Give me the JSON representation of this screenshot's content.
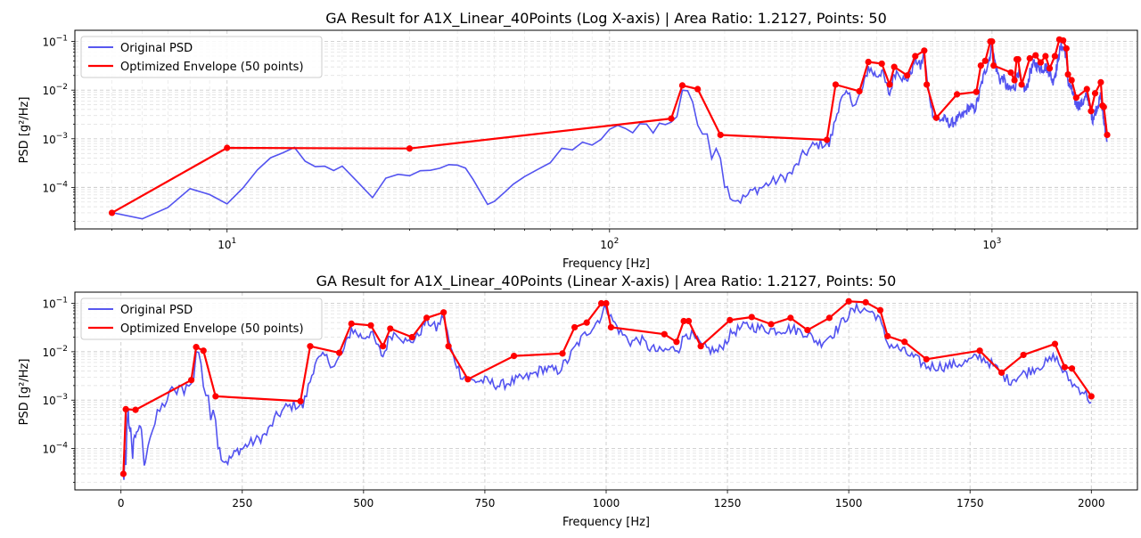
{
  "chart_data": [
    {
      "type": "line",
      "title": "GA Result for A1X_Linear_40Points (Log X-axis) | Area Ratio: 1.2127, Points: 50",
      "xlabel": "Frequency [Hz]",
      "ylabel": "PSD [g²/Hz]",
      "xscale": "log",
      "yscale": "log",
      "xlim": [
        4,
        2400
      ],
      "ylim": [
        1.4e-05,
        0.17
      ],
      "xticks": [
        10,
        100,
        1000
      ],
      "xtick_labels": [
        {
          "base": "10",
          "exp": "1"
        },
        {
          "base": "10",
          "exp": "2"
        },
        {
          "base": "10",
          "exp": "3"
        }
      ],
      "yticks": [
        0.0001,
        0.001,
        0.01,
        0.1
      ],
      "ytick_labels": [
        {
          "base": "10",
          "exp": "−4"
        },
        {
          "base": "10",
          "exp": "−3"
        },
        {
          "base": "10",
          "exp": "−2"
        },
        {
          "base": "10",
          "exp": "−1"
        }
      ],
      "grid": true,
      "legend": "top-left",
      "series": [
        {
          "name": "Original PSD",
          "color": "#4040ee",
          "approximate": true
        },
        {
          "name": "Optimized Envelope (50 points)",
          "color": "#ff0000",
          "marker": "circle"
        }
      ]
    },
    {
      "type": "line",
      "title": "GA Result for A1X_Linear_40Points (Linear X-axis) | Area Ratio: 1.2127, Points: 50",
      "xlabel": "Frequency [Hz]",
      "ylabel": "PSD [g²/Hz]",
      "xscale": "linear",
      "yscale": "log",
      "xlim": [
        -95,
        2095
      ],
      "ylim": [
        1.4e-05,
        0.17
      ],
      "xticks": [
        0,
        250,
        500,
        750,
        1000,
        1250,
        1500,
        1750,
        2000
      ],
      "xtick_labels": [
        "0",
        "250",
        "500",
        "750",
        "1000",
        "1250",
        "1500",
        "1750",
        "2000"
      ],
      "yticks": [
        0.0001,
        0.001,
        0.01,
        0.1
      ],
      "ytick_labels": [
        {
          "base": "10",
          "exp": "−4"
        },
        {
          "base": "10",
          "exp": "−3"
        },
        {
          "base": "10",
          "exp": "−2"
        },
        {
          "base": "10",
          "exp": "−1"
        }
      ],
      "grid": true,
      "legend": "top-left",
      "series": [
        {
          "name": "Original PSD",
          "color": "#4040ee",
          "approximate": true
        },
        {
          "name": "Optimized Envelope (50 points)",
          "color": "#ff0000",
          "marker": "circle"
        }
      ]
    }
  ],
  "envelope": {
    "x": [
      5,
      10,
      30,
      145,
      155,
      170,
      195,
      370,
      390,
      450,
      475,
      515,
      540,
      555,
      600,
      630,
      665,
      675,
      715,
      810,
      910,
      935,
      960,
      990,
      1000,
      1010,
      1120,
      1145,
      1160,
      1170,
      1195,
      1255,
      1300,
      1340,
      1380,
      1415,
      1460,
      1500,
      1535,
      1565,
      1580,
      1615,
      1660,
      1770,
      1815,
      1860,
      1925,
      1945,
      1960,
      2000
    ],
    "y": [
      3e-05,
      0.00065,
      0.00063,
      0.0026,
      0.0125,
      0.0105,
      0.0012,
      0.00095,
      0.013,
      0.0095,
      0.038,
      0.035,
      0.013,
      0.03,
      0.02,
      0.05,
      0.065,
      0.013,
      0.0027,
      0.0082,
      0.0092,
      0.032,
      0.04,
      0.1,
      0.1,
      0.032,
      0.023,
      0.016,
      0.043,
      0.043,
      0.013,
      0.045,
      0.052,
      0.037,
      0.05,
      0.028,
      0.05,
      0.11,
      0.105,
      0.072,
      0.021,
      0.016,
      0.007,
      0.0105,
      0.0037,
      0.0086,
      0.0145,
      0.0048,
      0.0045,
      0.0012
    ]
  },
  "psd_trend": {
    "x": [
      5,
      6,
      7,
      8,
      9,
      10,
      11,
      12,
      13,
      14,
      15,
      16,
      17,
      18,
      19,
      20,
      22,
      24,
      26,
      28,
      30,
      32,
      34,
      36,
      38,
      40,
      42,
      44,
      46,
      48,
      50,
      53,
      56,
      60,
      65,
      70,
      75,
      80,
      85,
      90,
      95,
      100,
      105,
      110,
      115,
      120,
      125,
      130,
      135,
      140,
      145,
      150,
      155,
      160,
      165,
      170,
      175,
      180,
      185,
      190,
      195,
      200,
      210,
      220,
      230,
      240,
      250,
      260,
      280,
      300,
      320,
      340,
      360,
      375,
      390,
      400,
      420,
      440,
      460,
      475,
      490,
      500,
      515,
      530,
      540,
      555,
      570,
      590,
      610,
      630,
      650,
      665,
      680,
      700,
      720,
      750,
      780,
      810,
      840,
      870,
      900,
      920,
      940,
      960,
      975,
      990,
      1000,
      1010,
      1030,
      1050,
      1070,
      1090,
      1110,
      1130,
      1150,
      1165,
      1180,
      1200,
      1230,
      1260,
      1290,
      1320,
      1350,
      1380,
      1410,
      1440,
      1470,
      1500,
      1520,
      1540,
      1560,
      1580,
      1600,
      1630,
      1660,
      1700,
      1740,
      1770,
      1790,
      1810,
      1830,
      1860,
      1890,
      1910,
      1925,
      1945,
      1965,
      1985,
      2000
    ],
    "y": [
      3e-05,
      2.3e-05,
      3.8e-05,
      9e-05,
      7e-05,
      4.5e-05,
      0.0001,
      0.00022,
      0.0004,
      0.0005,
      0.00065,
      0.00035,
      0.00026,
      0.00028,
      0.00022,
      0.00028,
      0.00013,
      6e-05,
      0.00015,
      0.00018,
      0.00018,
      0.00022,
      0.00022,
      0.00025,
      0.0003,
      0.00029,
      0.00024,
      0.00014,
      8e-05,
      4.5e-05,
      5e-05,
      8e-05,
      0.00012,
      0.00017,
      0.00025,
      0.00032,
      0.0005,
      0.0006,
      0.00075,
      0.00085,
      0.001,
      0.0013,
      0.0016,
      0.0018,
      0.0013,
      0.0017,
      0.0018,
      0.0016,
      0.002,
      0.0024,
      0.002,
      0.003,
      0.009,
      0.011,
      0.006,
      0.002,
      0.0013,
      0.001,
      0.0004,
      0.0008,
      0.00045,
      0.00012,
      6e-05,
      5.5e-05,
      7e-05,
      9e-05,
      0.0001,
      0.00012,
      0.00015,
      0.0002,
      0.00045,
      0.0007,
      0.0008,
      0.00075,
      0.0025,
      0.006,
      0.008,
      0.005,
      0.011,
      0.03,
      0.022,
      0.02,
      0.025,
      0.012,
      0.008,
      0.022,
      0.025,
      0.015,
      0.02,
      0.045,
      0.03,
      0.055,
      0.011,
      0.0035,
      0.0025,
      0.0025,
      0.002,
      0.0025,
      0.003,
      0.0045,
      0.004,
      0.0065,
      0.014,
      0.025,
      0.035,
      0.055,
      0.09,
      0.05,
      0.025,
      0.016,
      0.018,
      0.012,
      0.01,
      0.011,
      0.012,
      0.025,
      0.02,
      0.012,
      0.01,
      0.025,
      0.035,
      0.03,
      0.028,
      0.03,
      0.025,
      0.015,
      0.025,
      0.06,
      0.08,
      0.07,
      0.055,
      0.015,
      0.012,
      0.008,
      0.005,
      0.005,
      0.006,
      0.008,
      0.006,
      0.004,
      0.0025,
      0.0035,
      0.005,
      0.006,
      0.008,
      0.0035,
      0.002,
      0.0015,
      0.0009
    ]
  }
}
